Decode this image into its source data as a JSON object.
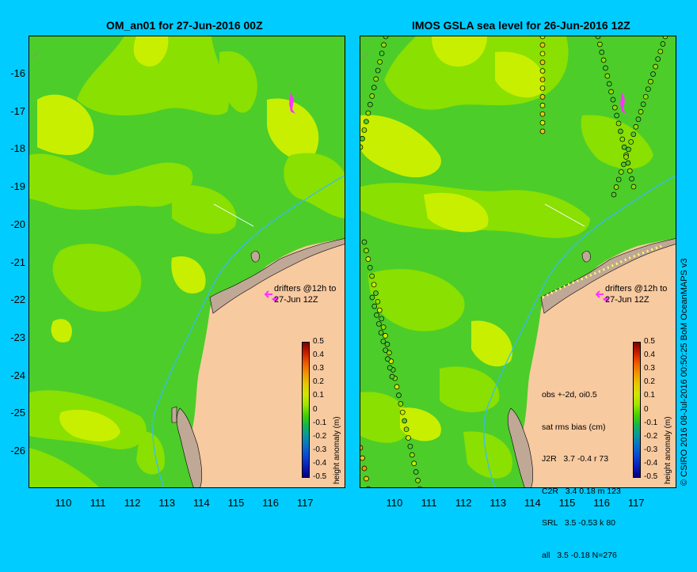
{
  "left_panel": {
    "title": "OM_an01 for 27-Jun-2016 00Z",
    "drifter_note_line1": "drifters @12h to",
    "drifter_note_line2": "27-Jun 12Z"
  },
  "right_panel": {
    "title": "IMOS GSLA sea level  for 26-Jun-2016 12Z",
    "drifter_note_line1": "drifters @12h to",
    "drifter_note_line2": "27-Jun 12Z",
    "stats": {
      "line1": "obs +-2d, oi0.5",
      "line2": "sat rms bias (cm)",
      "rows": [
        "J2R   3.7 -0.4 r 73",
        "C2R   3.4 0.18 m 123",
        "SRL   3.5 -0.53 k 80",
        "all   3.5 -0.18 N=276"
      ]
    }
  },
  "y_ticks": [
    "-16",
    "-17",
    "-18",
    "-19",
    "-20",
    "-21",
    "-22",
    "-23",
    "-24",
    "-25",
    "-26"
  ],
  "x_ticks": [
    "110",
    "111",
    "112",
    "113",
    "114",
    "115",
    "116",
    "117"
  ],
  "colorbar": {
    "label": "height anomaly (m)",
    "ticks": [
      "0.5",
      "0.4",
      "0.3",
      "0.2",
      "0.1",
      "0",
      "-0.1",
      "-0.2",
      "-0.3",
      "-0.4",
      "-0.5"
    ],
    "colors": [
      "#7a0000",
      "#c81e00",
      "#f05a00",
      "#f09600",
      "#e6c800",
      "#d2e600",
      "#a0e600",
      "#46d200",
      "#14b450",
      "#0a96a0",
      "#0a6ec8",
      "#0a46d2",
      "#0a1eb4",
      "#000080"
    ]
  },
  "colors": {
    "background": "#00ccff",
    "ocean_green": "#4ccd2a",
    "ocean_yellow": "#c8ef00",
    "ocean_lightgreen": "#8ae000",
    "land": "#f8caa0",
    "coast_shelf": "#c0a896",
    "drifter": "#ff33ff",
    "isobath": "#33bbff"
  },
  "credit": "© CSIRO 2016   08-Jul-2016 00:50:25 BoM OceanMAPS v3"
}
